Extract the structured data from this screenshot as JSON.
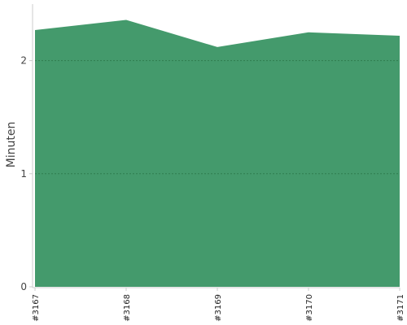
{
  "chart_data": {
    "type": "area",
    "categories": [
      "#3167",
      "#3168",
      "#3169",
      "#3170",
      "#3171"
    ],
    "series": [
      {
        "values": [
          2.27,
          2.36,
          2.12,
          2.25,
          2.22
        ]
      }
    ],
    "title": "",
    "xlabel": "",
    "ylabel": "Minuten",
    "ylim": [
      0,
      2.5
    ],
    "yticks": [
      0,
      1,
      2
    ],
    "grid": true,
    "colors": {
      "area": "#449a6c",
      "grid": "#2f7d4f"
    }
  }
}
